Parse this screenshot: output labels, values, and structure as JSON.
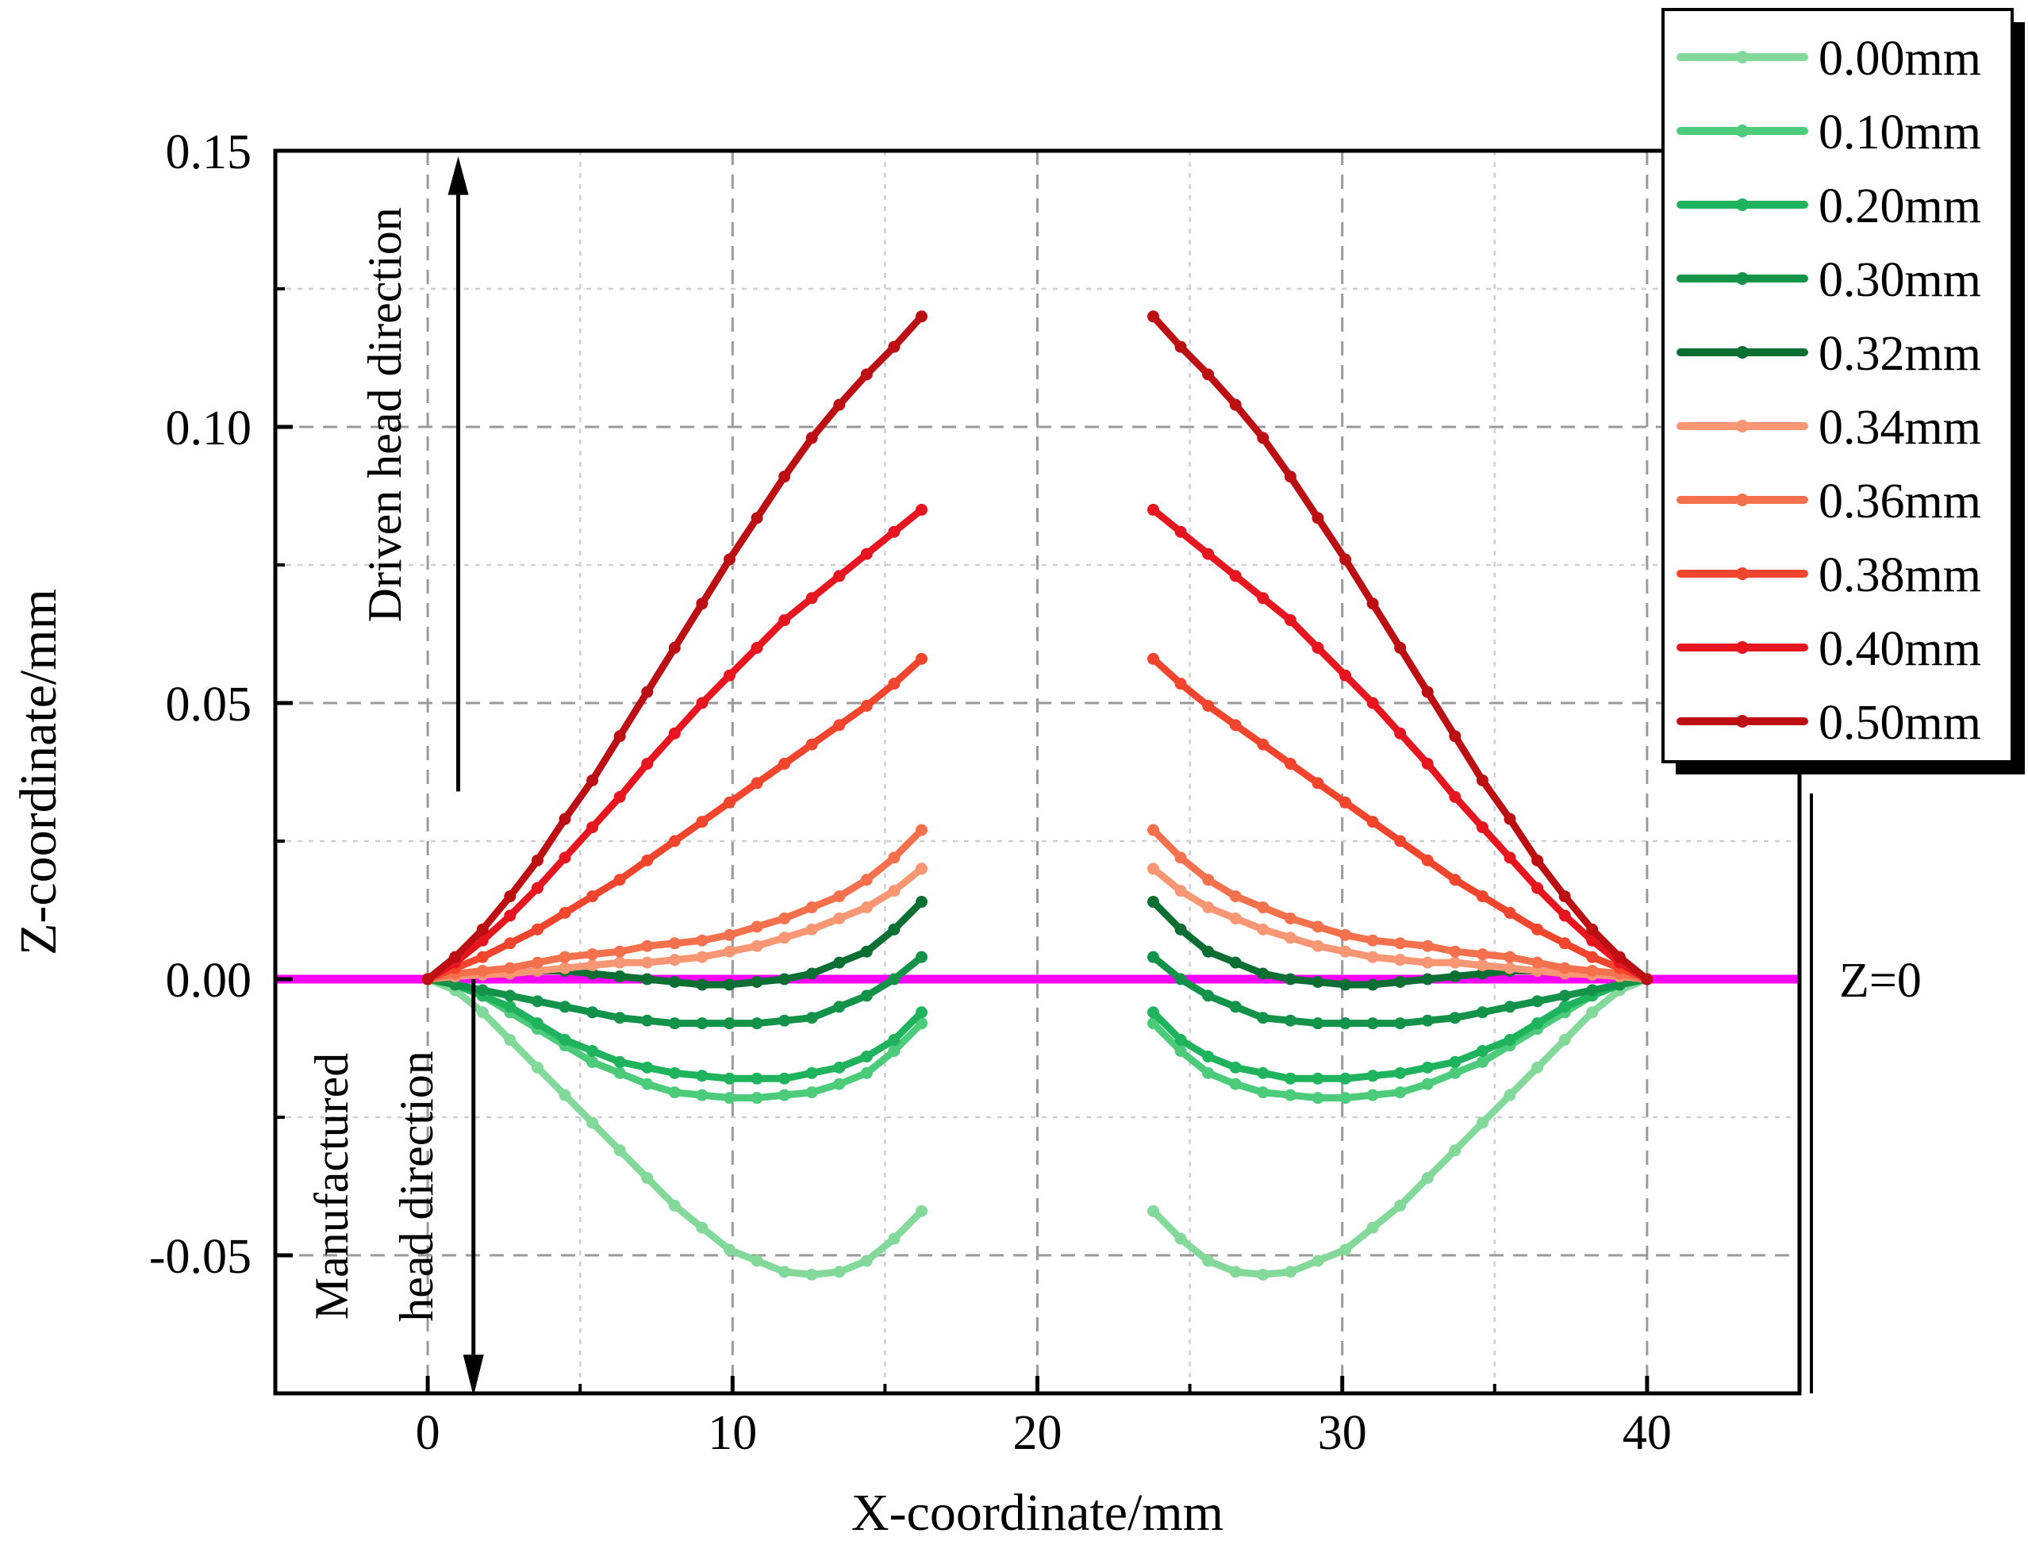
{
  "chart_data": {
    "type": "line",
    "title": "",
    "xlabel": "X-coordinate/mm",
    "ylabel": "Z-coordinate/mm",
    "xlim": [
      -5,
      45
    ],
    "ylim": [
      -0.075,
      0.15
    ],
    "x_ticks": [
      0,
      10,
      20,
      30,
      40
    ],
    "x_tick_labels": [
      "0",
      "10",
      "20",
      "30",
      "40"
    ],
    "x_minor_grid": [
      5,
      15,
      25,
      35
    ],
    "y_ticks": [
      -0.05,
      0.0,
      0.05,
      0.1,
      0.15
    ],
    "y_tick_labels": [
      "-0.05",
      "0.00",
      "0.05",
      "0.10",
      "0.15"
    ],
    "y_minor_grid": [
      -0.025,
      0.025,
      0.075,
      0.125
    ],
    "grid": true,
    "legend_position": "top-right",
    "reference_line": {
      "y": 0,
      "label": "Z=0",
      "color": "#ff00ff"
    },
    "annotations": [
      {
        "text": "Driven head direction",
        "arrow": "up"
      },
      {
        "text": "Manufactured",
        "arrow": "down"
      },
      {
        "text": "head direction",
        "arrow": "down"
      }
    ],
    "x_left": [
      0.0,
      0.9,
      1.8,
      2.7,
      3.6,
      4.5,
      5.4,
      6.3,
      7.2,
      8.1,
      9.0,
      9.9,
      10.8,
      11.7,
      12.6,
      13.5,
      14.4,
      15.3,
      16.2
    ],
    "x_right": [
      23.8,
      24.7,
      25.6,
      26.5,
      27.4,
      28.3,
      29.2,
      30.1,
      31.0,
      31.9,
      32.8,
      33.7,
      34.6,
      35.5,
      36.4,
      37.3,
      38.2,
      39.1,
      40.0
    ],
    "series": [
      {
        "name": "0.00mm",
        "color": "#82d99a",
        "left": [
          0.0,
          -0.002,
          -0.006,
          -0.011,
          -0.016,
          -0.021,
          -0.026,
          -0.031,
          -0.036,
          -0.041,
          -0.045,
          -0.049,
          -0.051,
          -0.053,
          -0.0535,
          -0.053,
          -0.051,
          -0.047,
          -0.042
        ],
        "right": [
          -0.042,
          -0.047,
          -0.051,
          -0.053,
          -0.0535,
          -0.053,
          -0.051,
          -0.049,
          -0.045,
          -0.041,
          -0.036,
          -0.031,
          -0.026,
          -0.021,
          -0.016,
          -0.011,
          -0.006,
          -0.002,
          0.0
        ]
      },
      {
        "name": "0.10mm",
        "color": "#4ccb7a",
        "left": [
          0.0,
          -0.001,
          -0.003,
          -0.006,
          -0.009,
          -0.012,
          -0.015,
          -0.017,
          -0.019,
          -0.0205,
          -0.021,
          -0.0215,
          -0.0215,
          -0.021,
          -0.0205,
          -0.019,
          -0.017,
          -0.013,
          -0.008
        ],
        "right": [
          -0.008,
          -0.013,
          -0.017,
          -0.019,
          -0.0205,
          -0.021,
          -0.0215,
          -0.0215,
          -0.021,
          -0.0205,
          -0.019,
          -0.017,
          -0.015,
          -0.012,
          -0.009,
          -0.006,
          -0.003,
          -0.001,
          0.0
        ]
      },
      {
        "name": "0.20mm",
        "color": "#20b35e",
        "left": [
          0.0,
          -0.001,
          -0.003,
          -0.005,
          -0.008,
          -0.011,
          -0.013,
          -0.015,
          -0.016,
          -0.017,
          -0.0175,
          -0.018,
          -0.018,
          -0.018,
          -0.017,
          -0.016,
          -0.014,
          -0.011,
          -0.006
        ],
        "right": [
          -0.006,
          -0.011,
          -0.014,
          -0.016,
          -0.017,
          -0.018,
          -0.018,
          -0.018,
          -0.0175,
          -0.017,
          -0.016,
          -0.015,
          -0.013,
          -0.011,
          -0.008,
          -0.005,
          -0.003,
          -0.001,
          0.0
        ]
      },
      {
        "name": "0.30mm",
        "color": "#13924a",
        "left": [
          0.0,
          -0.001,
          -0.002,
          -0.003,
          -0.004,
          -0.005,
          -0.006,
          -0.007,
          -0.0075,
          -0.008,
          -0.008,
          -0.008,
          -0.008,
          -0.0075,
          -0.007,
          -0.005,
          -0.003,
          0.0,
          0.004
        ],
        "right": [
          0.004,
          0.0,
          -0.003,
          -0.005,
          -0.007,
          -0.0075,
          -0.008,
          -0.008,
          -0.008,
          -0.008,
          -0.0075,
          -0.007,
          -0.006,
          -0.005,
          -0.004,
          -0.003,
          -0.002,
          -0.001,
          0.0
        ]
      },
      {
        "name": "0.32mm",
        "color": "#0b6e32",
        "left": [
          0.0,
          0.0005,
          0.001,
          0.001,
          0.0015,
          0.0015,
          0.001,
          0.0005,
          0.0,
          -0.0005,
          -0.001,
          -0.001,
          -0.0005,
          0.0,
          0.001,
          0.003,
          0.005,
          0.009,
          0.014
        ],
        "right": [
          0.014,
          0.009,
          0.005,
          0.003,
          0.001,
          0.0,
          -0.0005,
          -0.001,
          -0.001,
          -0.0005,
          0.0,
          0.0005,
          0.001,
          0.0015,
          0.0015,
          0.001,
          0.001,
          0.0005,
          0.0
        ]
      },
      {
        "name": "0.34mm",
        "color": "#f99673",
        "left": [
          0.0,
          0.0005,
          0.0008,
          0.001,
          0.0015,
          0.002,
          0.0025,
          0.003,
          0.003,
          0.0035,
          0.004,
          0.005,
          0.006,
          0.0075,
          0.009,
          0.011,
          0.013,
          0.016,
          0.02
        ],
        "right": [
          0.02,
          0.016,
          0.013,
          0.011,
          0.009,
          0.0075,
          0.006,
          0.005,
          0.004,
          0.0035,
          0.003,
          0.003,
          0.0025,
          0.002,
          0.0015,
          0.001,
          0.0008,
          0.0005,
          0.0
        ]
      },
      {
        "name": "0.36mm",
        "color": "#f5714d",
        "left": [
          0.0,
          0.001,
          0.0015,
          0.002,
          0.003,
          0.004,
          0.0045,
          0.005,
          0.006,
          0.0065,
          0.007,
          0.008,
          0.0095,
          0.011,
          0.013,
          0.015,
          0.018,
          0.022,
          0.027
        ],
        "right": [
          0.027,
          0.022,
          0.018,
          0.015,
          0.013,
          0.011,
          0.0095,
          0.008,
          0.007,
          0.0065,
          0.006,
          0.005,
          0.0045,
          0.004,
          0.003,
          0.002,
          0.0015,
          0.001,
          0.0
        ]
      },
      {
        "name": "0.38mm",
        "color": "#f2452d",
        "left": [
          0.0,
          0.002,
          0.004,
          0.0065,
          0.009,
          0.012,
          0.015,
          0.018,
          0.0215,
          0.025,
          0.0285,
          0.032,
          0.0355,
          0.039,
          0.0425,
          0.046,
          0.0495,
          0.0535,
          0.058
        ],
        "right": [
          0.058,
          0.0535,
          0.0495,
          0.046,
          0.0425,
          0.039,
          0.0355,
          0.032,
          0.0285,
          0.025,
          0.0215,
          0.018,
          0.015,
          0.012,
          0.009,
          0.0065,
          0.004,
          0.002,
          0.0
        ]
      },
      {
        "name": "0.40mm",
        "color": "#e6151f",
        "left": [
          0.0,
          0.003,
          0.007,
          0.0115,
          0.0165,
          0.022,
          0.0275,
          0.033,
          0.039,
          0.0445,
          0.05,
          0.055,
          0.06,
          0.065,
          0.069,
          0.073,
          0.077,
          0.081,
          0.085
        ],
        "right": [
          0.085,
          0.081,
          0.077,
          0.073,
          0.069,
          0.065,
          0.06,
          0.055,
          0.05,
          0.0445,
          0.039,
          0.033,
          0.0275,
          0.022,
          0.0165,
          0.0115,
          0.007,
          0.003,
          0.0
        ]
      },
      {
        "name": "0.50mm",
        "color": "#bb0f14",
        "left": [
          0.0,
          0.004,
          0.009,
          0.015,
          0.0215,
          0.029,
          0.036,
          0.044,
          0.052,
          0.06,
          0.068,
          0.076,
          0.0835,
          0.091,
          0.098,
          0.104,
          0.1095,
          0.1145,
          0.12
        ],
        "right": [
          0.12,
          0.1145,
          0.1095,
          0.104,
          0.098,
          0.091,
          0.0835,
          0.076,
          0.068,
          0.06,
          0.052,
          0.044,
          0.036,
          0.029,
          0.0215,
          0.015,
          0.009,
          0.004,
          0.0
        ]
      }
    ]
  }
}
